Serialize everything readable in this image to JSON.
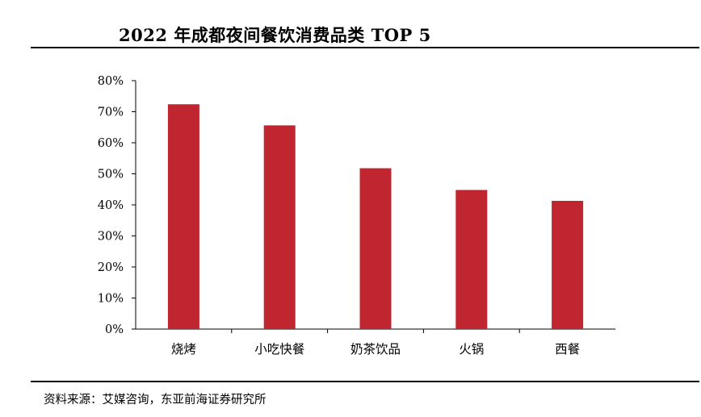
{
  "title": "2022 年成都夜间餐饮消费品类 TOP 5",
  "source": "资料来源：艾媒咨询，东亚前海证券研究所",
  "chart_data": {
    "type": "bar",
    "title": "2022 年成都夜间餐饮消费品类 TOP 5",
    "categories": [
      "烧烤",
      "小吃快餐",
      "奶茶饮品",
      "火锅",
      "西餐"
    ],
    "values": [
      72.4,
      65.6,
      51.8,
      44.8,
      41.3
    ],
    "unit": "%",
    "xlabel": "",
    "ylabel": "",
    "ylim": [
      0,
      80
    ],
    "yticks": [
      0,
      10,
      20,
      30,
      40,
      50,
      60,
      70,
      80
    ],
    "ytick_labels": [
      "0%",
      "10%",
      "20%",
      "30%",
      "40%",
      "50%",
      "60%",
      "70%",
      "80%"
    ],
    "bar_color": "#c0262f",
    "grid": false,
    "legend": "none"
  }
}
